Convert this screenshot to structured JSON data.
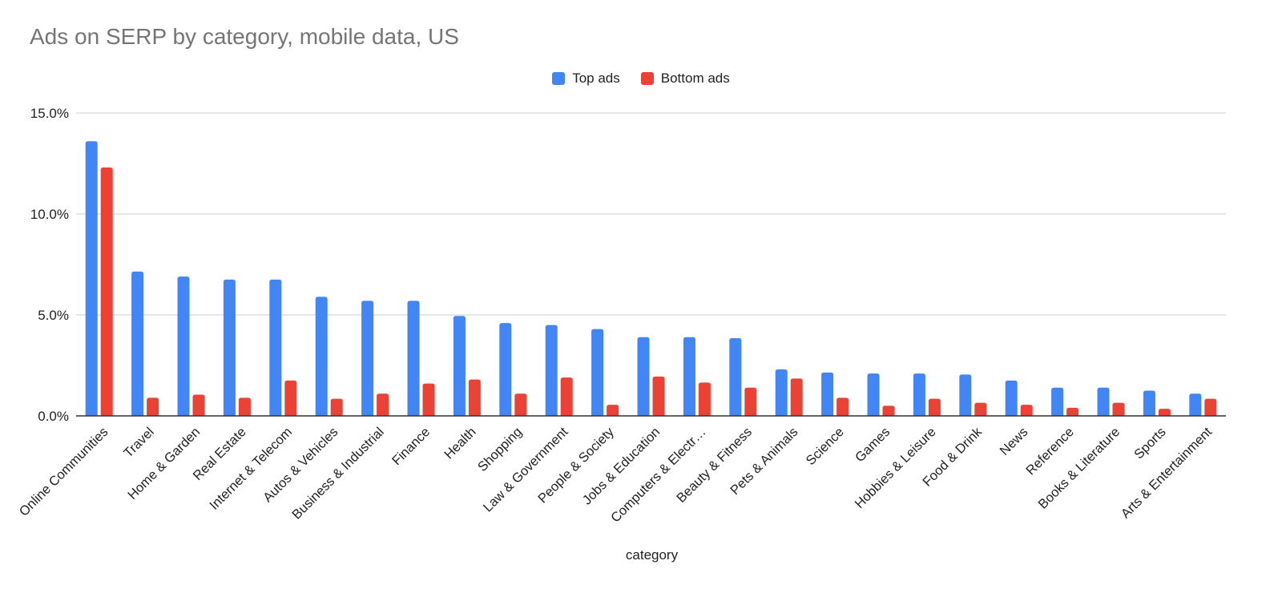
{
  "chart_data": {
    "type": "bar",
    "title": "Ads on SERP by category, mobile data, US",
    "xlabel": "category",
    "ylabel": "",
    "ylim": [
      0,
      15
    ],
    "yticks": [
      "15.0%",
      "10.0%",
      "5.0%",
      "0.0%"
    ],
    "ytick_values": [
      15,
      10,
      5,
      0
    ],
    "grid": true,
    "legend_position": "top-center",
    "categories": [
      "Online Communities",
      "Travel",
      "Home & Garden",
      "Real Estate",
      "Internet & Telecom",
      "Autos & Vehicles",
      "Business & Industrial",
      "Finance",
      "Health",
      "Shopping",
      "Law & Government",
      "People & Society",
      "Jobs & Education",
      "Computers & Electr…",
      "Beauty & Fitness",
      "Pets & Animals",
      "Science",
      "Games",
      "Hobbies & Leisure",
      "Food & Drink",
      "News",
      "Reference",
      "Books & Literature",
      "Sports",
      "Arts & Entertainment"
    ],
    "series": [
      {
        "name": "Top ads",
        "color": "#4285f4",
        "values": [
          13.6,
          7.15,
          6.9,
          6.75,
          6.75,
          5.9,
          5.7,
          5.7,
          4.95,
          4.6,
          4.5,
          4.3,
          3.9,
          3.9,
          3.85,
          2.3,
          2.15,
          2.1,
          2.1,
          2.05,
          1.75,
          1.4,
          1.4,
          1.25,
          1.1
        ]
      },
      {
        "name": "Bottom ads",
        "color": "#ea4335",
        "values": [
          12.3,
          0.9,
          1.05,
          0.9,
          1.75,
          0.85,
          1.1,
          1.6,
          1.8,
          1.1,
          1.9,
          0.55,
          1.95,
          1.65,
          1.4,
          1.85,
          0.9,
          0.5,
          0.85,
          0.65,
          0.55,
          0.4,
          0.65,
          0.35,
          0.85
        ]
      }
    ]
  }
}
